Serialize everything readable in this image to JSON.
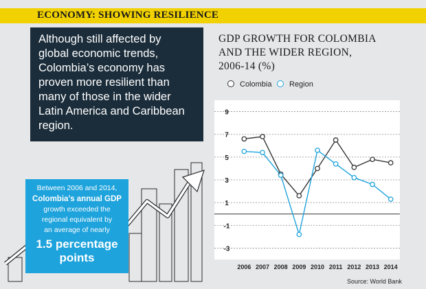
{
  "banner": {
    "title": "ECONOMY: SHOWING RESILIENCE"
  },
  "intro": {
    "lines": [
      "Although still affected by",
      "global economic trends,",
      "Colombia’s economy has",
      "proven more resilient than",
      "many of those in the wider",
      "Latin America and Caribbean",
      "region."
    ]
  },
  "callout": {
    "line1": "Between 2006 and 2014,",
    "line2": "Colombia’s annual GDP",
    "line3": "growth exceeded the",
    "line4": "regional equivalent by",
    "line5": "an average of nearly",
    "highlight1": "1.5 percentage",
    "highlight2": "points"
  },
  "source": "Source: World Bank",
  "colors": {
    "colombia": "#333333",
    "region": "#1ea3dc",
    "banner": "#f2d100",
    "box": "#1b2d3b"
  },
  "chart_data": {
    "type": "line",
    "title_lines": [
      "GDP GROWTH FOR COLOMBIA",
      "AND THE WIDER REGION,",
      "2006-14 (%)"
    ],
    "categories": [
      "2006",
      "2007",
      "2008",
      "2009",
      "2010",
      "2011",
      "2012",
      "2013",
      "2014"
    ],
    "yticks": [
      "9",
      "7",
      "5",
      "3",
      "1",
      "-1",
      "-3"
    ],
    "ylim": [
      -4,
      10
    ],
    "series": [
      {
        "name": "Colombia",
        "values": [
          6.6,
          6.8,
          3.5,
          1.6,
          4.0,
          6.5,
          4.1,
          4.8,
          4.5
        ]
      },
      {
        "name": "Region",
        "values": [
          5.5,
          5.4,
          3.4,
          -1.8,
          5.6,
          4.4,
          3.2,
          2.6,
          1.3
        ]
      }
    ]
  }
}
